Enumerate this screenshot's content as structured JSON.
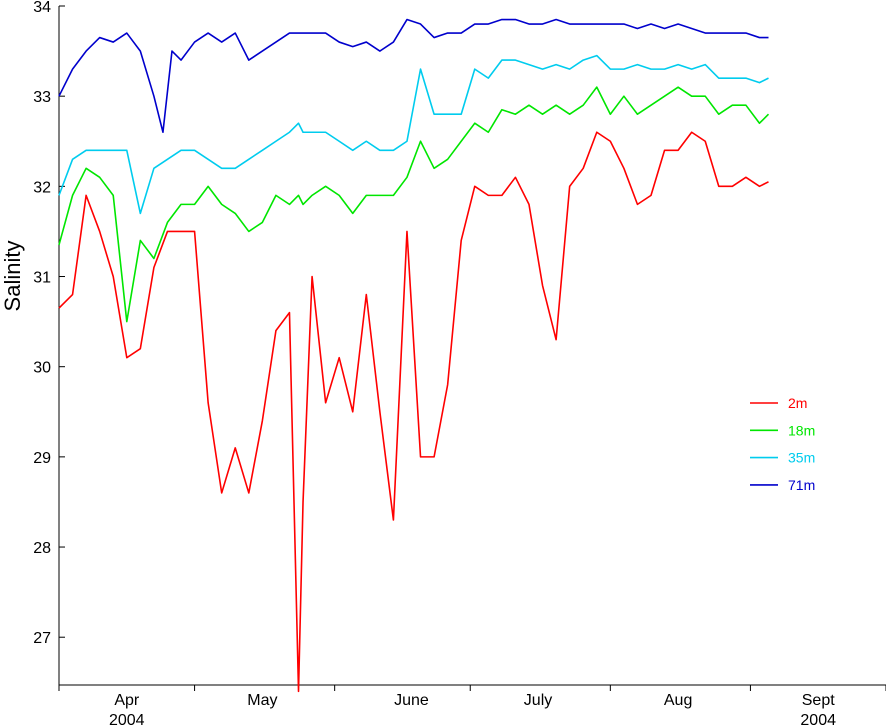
{
  "chart_data": {
    "type": "line",
    "y_label": "Salinity",
    "xlim": [
      0,
      183
    ],
    "ylim": [
      26.47,
      34
    ],
    "yticks": [
      27,
      28,
      29,
      30,
      31,
      32,
      33,
      34
    ],
    "xticks": [
      {
        "value": 15,
        "label": "Apr\n2004"
      },
      {
        "value": 45,
        "label": "May"
      },
      {
        "value": 78,
        "label": "June"
      },
      {
        "value": 106,
        "label": "July"
      },
      {
        "value": 137,
        "label": "Aug"
      },
      {
        "value": 168,
        "label": "Sept\n2004"
      }
    ],
    "x_minor_ticks": [
      0,
      30,
      61,
      91,
      122,
      153,
      183
    ],
    "legend": "center-right",
    "series": [
      {
        "name": "2m",
        "color": "#ff0000",
        "x": [
          0,
          3,
          6,
          9,
          12,
          15,
          18,
          21,
          24,
          27,
          30,
          33,
          36,
          39,
          42,
          45,
          48,
          51,
          53,
          54,
          56,
          59,
          62,
          65,
          68,
          71,
          74,
          77,
          80,
          83,
          86,
          89,
          92,
          95,
          98,
          101,
          104,
          107,
          110,
          113,
          116,
          119,
          122,
          125,
          128,
          131,
          134,
          137,
          140,
          143,
          146,
          149,
          152,
          155,
          157
        ],
        "values": [
          30.65,
          30.8,
          31.9,
          31.5,
          31.0,
          30.1,
          30.2,
          31.1,
          31.5,
          31.5,
          31.5,
          29.6,
          28.6,
          29.1,
          28.6,
          29.4,
          30.4,
          30.6,
          26.4,
          28.5,
          31.0,
          29.6,
          30.1,
          29.5,
          30.8,
          29.5,
          28.3,
          31.5,
          29.0,
          29.0,
          29.8,
          31.4,
          32.0,
          31.9,
          31.9,
          32.1,
          31.8,
          30.9,
          30.3,
          32.0,
          32.2,
          32.6,
          32.5,
          32.2,
          31.8,
          31.9,
          32.4,
          32.4,
          32.6,
          32.5,
          32.0,
          32.0,
          32.1,
          32.0,
          32.05
        ]
      },
      {
        "name": "18m",
        "color": "#00e600",
        "x": [
          0,
          3,
          6,
          9,
          12,
          15,
          18,
          21,
          24,
          27,
          30,
          33,
          36,
          39,
          42,
          45,
          48,
          51,
          53,
          54,
          56,
          59,
          62,
          65,
          68,
          71,
          74,
          77,
          80,
          83,
          86,
          89,
          92,
          95,
          98,
          101,
          104,
          107,
          110,
          113,
          116,
          119,
          122,
          125,
          128,
          131,
          134,
          137,
          140,
          143,
          146,
          149,
          152,
          155,
          157
        ],
        "values": [
          31.35,
          31.9,
          32.2,
          32.1,
          31.9,
          30.5,
          31.4,
          31.2,
          31.6,
          31.8,
          31.8,
          32.0,
          31.8,
          31.7,
          31.5,
          31.6,
          31.9,
          31.8,
          31.9,
          31.8,
          31.9,
          32.0,
          31.9,
          31.7,
          31.9,
          31.9,
          31.9,
          32.1,
          32.5,
          32.2,
          32.3,
          32.5,
          32.7,
          32.6,
          32.85,
          32.8,
          32.9,
          32.8,
          32.9,
          32.8,
          32.9,
          33.1,
          32.8,
          33.0,
          32.8,
          32.9,
          33.0,
          33.1,
          33.0,
          33.0,
          32.8,
          32.9,
          32.9,
          32.7,
          32.8
        ]
      },
      {
        "name": "35m",
        "color": "#00ccee",
        "x": [
          0,
          3,
          6,
          9,
          12,
          15,
          18,
          21,
          24,
          27,
          30,
          33,
          36,
          39,
          42,
          45,
          48,
          51,
          53,
          54,
          56,
          59,
          62,
          65,
          68,
          71,
          74,
          77,
          80,
          83,
          86,
          89,
          92,
          95,
          98,
          101,
          104,
          107,
          110,
          113,
          116,
          119,
          122,
          125,
          128,
          131,
          134,
          137,
          140,
          143,
          146,
          149,
          152,
          155,
          157
        ],
        "values": [
          31.9,
          32.3,
          32.4,
          32.4,
          32.4,
          32.4,
          31.7,
          32.2,
          32.3,
          32.4,
          32.4,
          32.3,
          32.2,
          32.2,
          32.3,
          32.4,
          32.5,
          32.6,
          32.7,
          32.6,
          32.6,
          32.6,
          32.5,
          32.4,
          32.5,
          32.4,
          32.4,
          32.5,
          33.3,
          32.8,
          32.8,
          32.8,
          33.3,
          33.2,
          33.4,
          33.4,
          33.35,
          33.3,
          33.35,
          33.3,
          33.4,
          33.45,
          33.3,
          33.3,
          33.35,
          33.3,
          33.3,
          33.35,
          33.3,
          33.35,
          33.2,
          33.2,
          33.2,
          33.15,
          33.2
        ]
      },
      {
        "name": "71m",
        "color": "#0000cc",
        "x": [
          0,
          3,
          6,
          9,
          12,
          15,
          18,
          21,
          23,
          25,
          27,
          30,
          33,
          36,
          39,
          42,
          45,
          48,
          51,
          53,
          54,
          56,
          59,
          62,
          65,
          68,
          71,
          74,
          77,
          80,
          83,
          86,
          89,
          92,
          95,
          98,
          101,
          104,
          107,
          110,
          113,
          116,
          119,
          122,
          125,
          128,
          131,
          134,
          137,
          140,
          143,
          146,
          149,
          152,
          155,
          157
        ],
        "values": [
          33.0,
          33.3,
          33.5,
          33.65,
          33.6,
          33.7,
          33.5,
          33.0,
          32.6,
          33.5,
          33.4,
          33.6,
          33.7,
          33.6,
          33.7,
          33.4,
          33.5,
          33.6,
          33.7,
          33.7,
          33.7,
          33.7,
          33.7,
          33.6,
          33.55,
          33.6,
          33.5,
          33.6,
          33.85,
          33.8,
          33.65,
          33.7,
          33.7,
          33.8,
          33.8,
          33.85,
          33.85,
          33.8,
          33.8,
          33.85,
          33.8,
          33.8,
          33.8,
          33.8,
          33.8,
          33.75,
          33.8,
          33.75,
          33.8,
          33.75,
          33.7,
          33.7,
          33.7,
          33.7,
          33.65,
          33.65
        ]
      }
    ]
  }
}
